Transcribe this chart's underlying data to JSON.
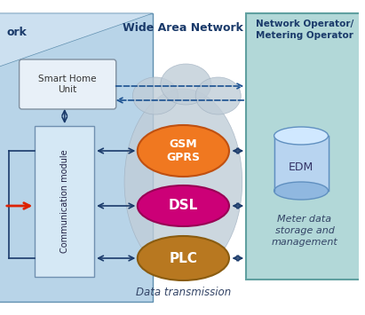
{
  "bg_color": "#ffffff",
  "left_panel_color": "#b8d4e8",
  "right_panel_color": "#b2d8d8",
  "comm_module_color": "#d5e8f5",
  "smart_home_color": "#e8f0f8",
  "gsm_color": "#f07820",
  "dsl_color": "#cc0077",
  "plc_color": "#b87820",
  "arrow_color": "#1a3a6a",
  "dashed_color": "#1a5090",
  "title_wan": "Wide Area Network",
  "label_network": "ork",
  "label_comm": "Communication module",
  "label_smart": "Smart Home\nUnit",
  "label_gsm": "GSM\nGPRS",
  "label_dsl": "DSL",
  "label_plc": "PLC",
  "label_edm": "EDM",
  "label_meter": "Meter data\nstorage and\nmanagement",
  "label_data_tx": "Data transmission",
  "red_arrow_color": "#dd2200"
}
